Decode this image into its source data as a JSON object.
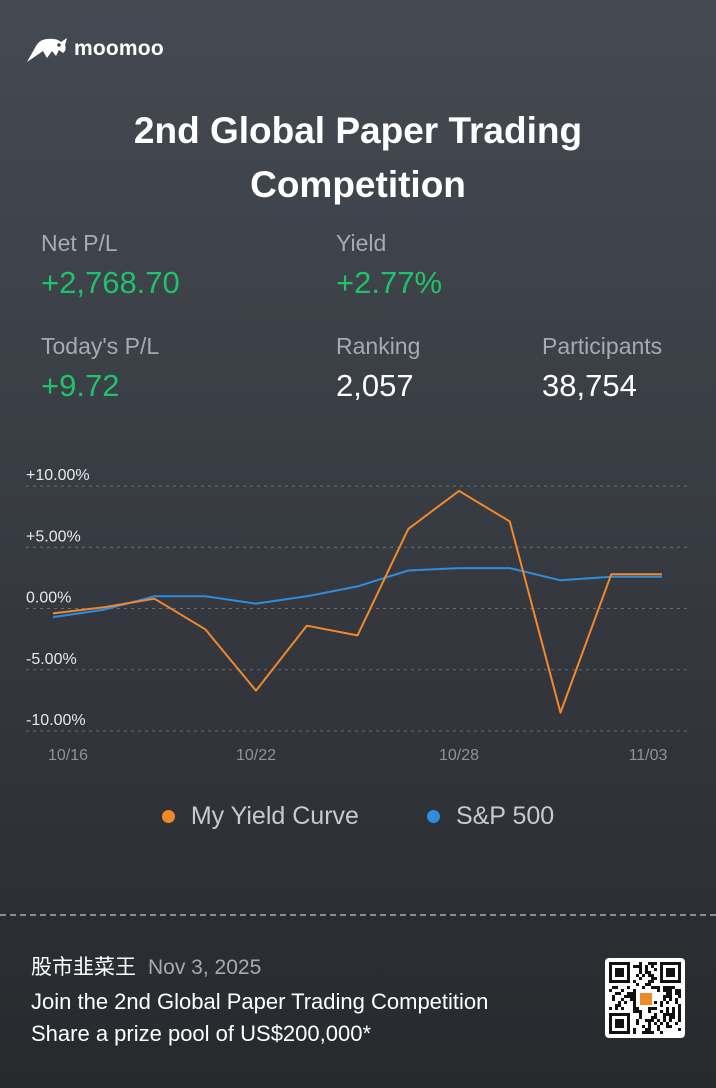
{
  "brand": {
    "name": "moomoo"
  },
  "title_line1": "2nd Global Paper Trading",
  "title_line2": "Competition",
  "stats": {
    "net_pl": {
      "label": "Net P/L",
      "value": "+2,768.70"
    },
    "yield": {
      "label": "Yield",
      "value": "+2.77%"
    },
    "todays_pl": {
      "label": "Today's P/L",
      "value": "+9.72"
    },
    "ranking": {
      "label": "Ranking",
      "value": "2,057"
    },
    "participants": {
      "label": "Participants",
      "value": "38,754"
    }
  },
  "chart_data": {
    "type": "line",
    "y_ticks": [
      "+10.00%",
      "+5.00%",
      "0.00%",
      "-5.00%",
      "-10.00%"
    ],
    "ylim": [
      -10,
      10
    ],
    "x_tick_labels": [
      "10/16",
      "10/22",
      "10/28",
      "11/03"
    ],
    "x_tick_index": [
      0,
      4,
      8,
      12
    ],
    "grid": true,
    "legend_position": "bottom",
    "series": [
      {
        "name": "My Yield Curve",
        "color": "#f0892c",
        "values": [
          -0.4,
          0.1,
          0.8,
          -1.7,
          -6.7,
          -1.4,
          -2.2,
          6.5,
          9.6,
          7.1,
          -8.5,
          2.8,
          2.8
        ]
      },
      {
        "name": "S&P 500",
        "color": "#2f8ddc",
        "values": [
          -0.7,
          -0.1,
          1.0,
          1.0,
          0.4,
          1.0,
          1.8,
          3.1,
          3.3,
          3.3,
          2.3,
          2.6,
          2.6
        ]
      }
    ]
  },
  "footer": {
    "username": "股市韭菜王",
    "date": "Nov 3, 2025",
    "line1": "Join the 2nd Global Paper Trading Competition",
    "line2": "Share a prize pool of US$200,000*"
  }
}
